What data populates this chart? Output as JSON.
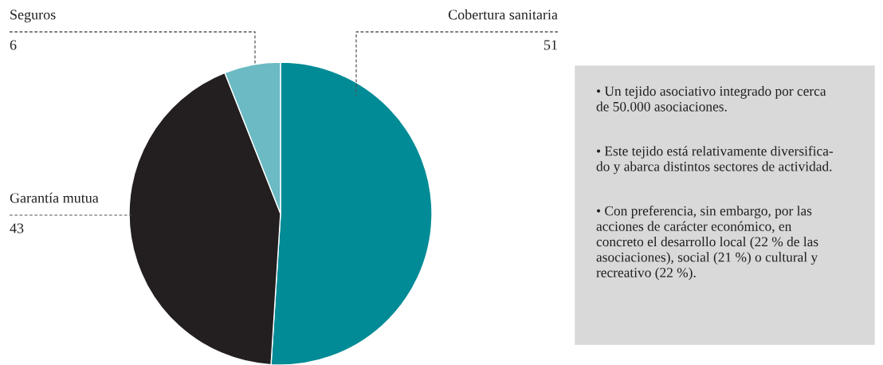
{
  "chart_data": {
    "type": "pie",
    "categories": [
      "Cobertura sanitaria",
      "Garantía mutua",
      "Seguros"
    ],
    "values": [
      51,
      43,
      6
    ],
    "colors": [
      "#008b96",
      "#231f20",
      "#6bbac4"
    ],
    "data_labels": true,
    "annotations": [
      "• Un tejido asociativo integrado por cerca\nde 50.000 asociaciones.",
      "• Este tejido está relativamente diversifica-\ndo y abarca distintos sectores de actividad.",
      "• Con preferencia, sin embargo, por las\nacciones de carácter económico, en\nconcreto el desarrollo local (22 % de las\nasociaciones), social (21 %) o cultural y\nrecreativo (22 %)."
    ]
  }
}
